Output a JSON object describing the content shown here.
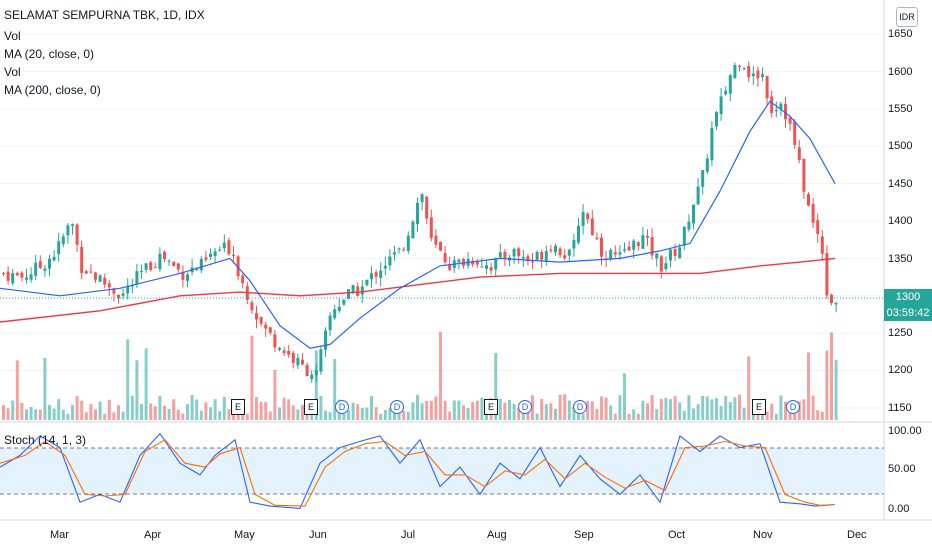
{
  "header": {
    "symbol_title": "SELAMAT SEMPURNA TBK, 1D, IDX",
    "indicators": [
      "Vol",
      "MA (20, close, 0)",
      "Vol",
      "MA (200, close, 0)"
    ]
  },
  "currency_badge": "IDR",
  "price_axis": {
    "ticks": [
      "1650",
      "1600",
      "1550",
      "1500",
      "1450",
      "1400",
      "1350",
      "1300",
      "1250",
      "1200",
      "1150"
    ],
    "current_price": "1300",
    "countdown": "03:59:42"
  },
  "stoch_panel": {
    "label": "Stoch (14, 1, 3)",
    "ticks": [
      "100.00",
      "50.00",
      "0.00"
    ]
  },
  "time_axis": {
    "months": [
      "Mar",
      "Apr",
      "May",
      "Jun",
      "Jul",
      "Aug",
      "Sep",
      "Oct",
      "Nov",
      "Dec"
    ]
  },
  "events": [
    {
      "type": "E"
    },
    {
      "type": "E"
    },
    {
      "type": "D"
    },
    {
      "type": "D"
    },
    {
      "type": "E"
    },
    {
      "type": "D"
    },
    {
      "type": "D"
    },
    {
      "type": "E"
    },
    {
      "type": "D"
    }
  ],
  "colors": {
    "up": "#26a69a",
    "down": "#ef5350",
    "ma20": "#2962ff",
    "ma200": "#f23645",
    "stoch_k": "#2962ff",
    "stoch_d": "#ff6d00",
    "stoch_band": "#e3f2fd",
    "current_price_tag": "#26a69a"
  },
  "chart_data": {
    "type": "candlestick",
    "y_range": [
      1140,
      1660
    ],
    "stoch_range": [
      0,
      100
    ],
    "stoch_bands": [
      80,
      20
    ],
    "approx_path": [
      [
        0,
        1330
      ],
      [
        20,
        1325
      ],
      [
        40,
        1340
      ],
      [
        55,
        1360
      ],
      [
        70,
        1400
      ],
      [
        80,
        1340
      ],
      [
        100,
        1320
      ],
      [
        120,
        1300
      ],
      [
        140,
        1330
      ],
      [
        160,
        1355
      ],
      [
        180,
        1330
      ],
      [
        200,
        1340
      ],
      [
        215,
        1360
      ],
      [
        230,
        1365
      ],
      [
        240,
        1320
      ],
      [
        250,
        1290
      ],
      [
        260,
        1260
      ],
      [
        280,
        1230
      ],
      [
        300,
        1205
      ],
      [
        315,
        1195
      ],
      [
        330,
        1280
      ],
      [
        345,
        1300
      ],
      [
        360,
        1310
      ],
      [
        380,
        1340
      ],
      [
        400,
        1360
      ],
      [
        420,
        1440
      ],
      [
        430,
        1370
      ],
      [
        450,
        1340
      ],
      [
        470,
        1350
      ],
      [
        490,
        1340
      ],
      [
        510,
        1360
      ],
      [
        530,
        1345
      ],
      [
        550,
        1370
      ],
      [
        570,
        1350
      ],
      [
        580,
        1420
      ],
      [
        600,
        1360
      ],
      [
        620,
        1350
      ],
      [
        640,
        1380
      ],
      [
        660,
        1340
      ],
      [
        680,
        1370
      ],
      [
        690,
        1420
      ],
      [
        700,
        1450
      ],
      [
        710,
        1520
      ],
      [
        720,
        1560
      ],
      [
        730,
        1600
      ],
      [
        740,
        1620
      ],
      [
        750,
        1590
      ],
      [
        760,
        1600
      ],
      [
        770,
        1550
      ],
      [
        780,
        1560
      ],
      [
        790,
        1520
      ],
      [
        800,
        1460
      ],
      [
        810,
        1400
      ],
      [
        820,
        1370
      ],
      [
        828,
        1280
      ],
      [
        836,
        1300
      ]
    ],
    "ma20_path": [
      [
        0,
        1310
      ],
      [
        60,
        1300
      ],
      [
        120,
        1310
      ],
      [
        180,
        1330
      ],
      [
        230,
        1350
      ],
      [
        250,
        1320
      ],
      [
        280,
        1260
      ],
      [
        310,
        1230
      ],
      [
        330,
        1235
      ],
      [
        360,
        1270
      ],
      [
        400,
        1310
      ],
      [
        440,
        1340
      ],
      [
        500,
        1350
      ],
      [
        560,
        1345
      ],
      [
        620,
        1350
      ],
      [
        660,
        1360
      ],
      [
        690,
        1370
      ],
      [
        720,
        1440
      ],
      [
        750,
        1520
      ],
      [
        770,
        1560
      ],
      [
        790,
        1540
      ],
      [
        810,
        1510
      ],
      [
        835,
        1450
      ]
    ],
    "ma200_path": [
      [
        0,
        1265
      ],
      [
        100,
        1280
      ],
      [
        180,
        1300
      ],
      [
        240,
        1305
      ],
      [
        300,
        1300
      ],
      [
        360,
        1305
      ],
      [
        420,
        1315
      ],
      [
        480,
        1325
      ],
      [
        560,
        1330
      ],
      [
        640,
        1330
      ],
      [
        700,
        1330
      ],
      [
        760,
        1340
      ],
      [
        800,
        1345
      ],
      [
        835,
        1350
      ]
    ],
    "stoch_k_path": [
      [
        0,
        55
      ],
      [
        20,
        70
      ],
      [
        40,
        95
      ],
      [
        60,
        80
      ],
      [
        80,
        10
      ],
      [
        100,
        20
      ],
      [
        120,
        10
      ],
      [
        140,
        70
      ],
      [
        160,
        98
      ],
      [
        180,
        60
      ],
      [
        200,
        45
      ],
      [
        215,
        70
      ],
      [
        235,
        90
      ],
      [
        250,
        10
      ],
      [
        270,
        5
      ],
      [
        300,
        2
      ],
      [
        320,
        60
      ],
      [
        340,
        80
      ],
      [
        360,
        88
      ],
      [
        380,
        95
      ],
      [
        400,
        60
      ],
      [
        420,
        90
      ],
      [
        440,
        30
      ],
      [
        460,
        55
      ],
      [
        480,
        20
      ],
      [
        500,
        60
      ],
      [
        520,
        40
      ],
      [
        540,
        80
      ],
      [
        560,
        30
      ],
      [
        580,
        70
      ],
      [
        600,
        40
      ],
      [
        620,
        20
      ],
      [
        640,
        45
      ],
      [
        660,
        10
      ],
      [
        680,
        95
      ],
      [
        700,
        75
      ],
      [
        720,
        95
      ],
      [
        740,
        80
      ],
      [
        760,
        85
      ],
      [
        780,
        10
      ],
      [
        800,
        8
      ],
      [
        815,
        5
      ],
      [
        825,
        6
      ],
      [
        835,
        7
      ]
    ],
    "stoch_d_path": [
      [
        0,
        60
      ],
      [
        25,
        70
      ],
      [
        45,
        88
      ],
      [
        65,
        70
      ],
      [
        85,
        20
      ],
      [
        105,
        18
      ],
      [
        125,
        20
      ],
      [
        145,
        75
      ],
      [
        165,
        90
      ],
      [
        185,
        60
      ],
      [
        205,
        55
      ],
      [
        220,
        72
      ],
      [
        240,
        80
      ],
      [
        255,
        20
      ],
      [
        275,
        6
      ],
      [
        305,
        5
      ],
      [
        325,
        55
      ],
      [
        345,
        75
      ],
      [
        365,
        85
      ],
      [
        385,
        88
      ],
      [
        405,
        70
      ],
      [
        425,
        75
      ],
      [
        445,
        45
      ],
      [
        465,
        45
      ],
      [
        485,
        30
      ],
      [
        505,
        50
      ],
      [
        525,
        45
      ],
      [
        545,
        65
      ],
      [
        565,
        40
      ],
      [
        585,
        60
      ],
      [
        605,
        42
      ],
      [
        625,
        28
      ],
      [
        645,
        38
      ],
      [
        665,
        25
      ],
      [
        685,
        80
      ],
      [
        705,
        82
      ],
      [
        725,
        88
      ],
      [
        745,
        82
      ],
      [
        765,
        80
      ],
      [
        785,
        20
      ],
      [
        805,
        10
      ],
      [
        820,
        6
      ],
      [
        835,
        7
      ]
    ]
  }
}
